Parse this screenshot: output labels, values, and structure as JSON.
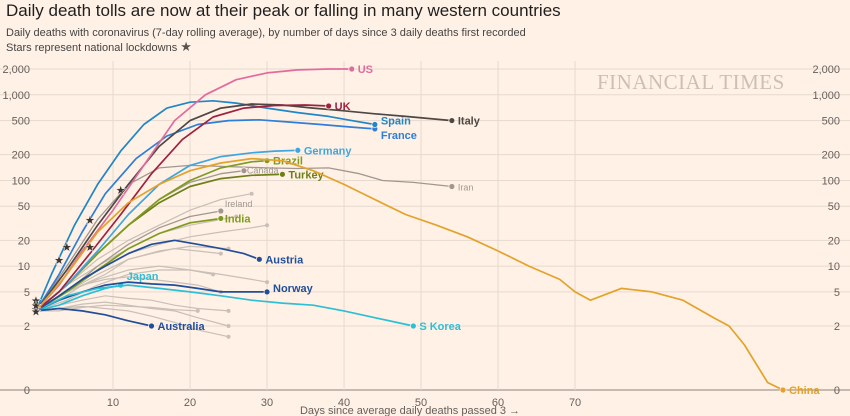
{
  "chart_data": {
    "type": "line",
    "title": "Daily death tolls are now at their peak or falling in many western countries",
    "subtitle": "Daily deaths with coronavirus (7-day rolling average), by number of days since 3 daily deaths first recorded",
    "lockdown_note": "Stars represent national lockdowns",
    "watermark": "FINANCIAL TIMES",
    "xlabel": "Days since average daily deaths passed 3 →",
    "ylabel": "",
    "y_scale": "log",
    "xlim": [
      0,
      97
    ],
    "x_ticks": [
      10,
      20,
      30,
      40,
      50,
      60,
      70
    ],
    "y_ticks": [
      0,
      2,
      5,
      10,
      20,
      50,
      100,
      200,
      500,
      1000,
      2000
    ],
    "y_tick_labels": [
      "0",
      "2",
      "5",
      "10",
      "20",
      "50",
      "100",
      "200",
      "500",
      "1,000",
      "2,000"
    ],
    "colors": {
      "US": "#e16b9e",
      "UK": "#a0213f",
      "Italy": "#4d4845",
      "Spain": "#1f86c8",
      "France": "#2f7ed8",
      "Germany": "#3fa5e0",
      "Brazil": "#7f9b1f",
      "Turkey": "#6f7f18",
      "Canada": "#a09890",
      "Iran": "#a09890",
      "Ireland": "#a09890",
      "India": "#7f9b1f",
      "Austria": "#1f4e9a",
      "Japan": "#2dbfd6",
      "Norway": "#1f4e9a",
      "Australia": "#1f4e9a",
      "S Korea": "#2dbfd6",
      "China": "#e3a22a",
      "others": "#c9bfb6"
    },
    "series": [
      {
        "name": "US",
        "x": [
          0,
          3,
          6,
          10,
          14,
          18,
          22,
          26,
          30,
          34,
          38,
          41
        ],
        "y": [
          3,
          6,
          15,
          45,
          150,
          500,
          1000,
          1500,
          1800,
          1950,
          2000,
          2000
        ]
      },
      {
        "name": "UK",
        "x": [
          0,
          3,
          7,
          11,
          15,
          19,
          23,
          27,
          31,
          35,
          38
        ],
        "y": [
          3,
          5,
          14,
          40,
          120,
          300,
          550,
          700,
          750,
          760,
          740
        ]
      },
      {
        "name": "Italy",
        "x": [
          0,
          4,
          8,
          12,
          16,
          20,
          24,
          28,
          32,
          36,
          40,
          44,
          48,
          54
        ],
        "y": [
          3,
          9,
          30,
          90,
          250,
          500,
          700,
          780,
          760,
          700,
          650,
          600,
          560,
          500
        ]
      },
      {
        "name": "Spain",
        "x": [
          0,
          2,
          5,
          8,
          11,
          14,
          17,
          20,
          23,
          26,
          30,
          34,
          38,
          41,
          44
        ],
        "y": [
          3,
          8,
          30,
          90,
          220,
          450,
          700,
          820,
          850,
          800,
          700,
          620,
          560,
          500,
          450
        ]
      },
      {
        "name": "France",
        "x": [
          0,
          3,
          6,
          9,
          13,
          17,
          21,
          25,
          29,
          33,
          37,
          41,
          44
        ],
        "y": [
          3,
          8,
          25,
          70,
          180,
          330,
          450,
          500,
          510,
          480,
          450,
          420,
          400
        ]
      },
      {
        "name": "Germany",
        "x": [
          0,
          4,
          8,
          12,
          16,
          20,
          24,
          28,
          31,
          34
        ],
        "y": [
          3,
          6,
          15,
          40,
          90,
          150,
          190,
          210,
          220,
          225
        ]
      },
      {
        "name": "Brazil",
        "x": [
          0,
          4,
          8,
          12,
          16,
          20,
          24,
          28,
          30
        ],
        "y": [
          3,
          6,
          14,
          30,
          60,
          100,
          140,
          165,
          170
        ]
      },
      {
        "name": "Turkey",
        "x": [
          0,
          4,
          8,
          12,
          16,
          20,
          24,
          28,
          32
        ],
        "y": [
          3,
          6,
          14,
          30,
          55,
          85,
          105,
          115,
          118
        ]
      },
      {
        "name": "Canada",
        "x": [
          0,
          4,
          8,
          12,
          16,
          20,
          24,
          27
        ],
        "y": [
          3,
          6,
          14,
          30,
          60,
          95,
          120,
          130
        ]
      },
      {
        "name": "Iran",
        "x": [
          0,
          4,
          8,
          12,
          16,
          20,
          25,
          30,
          34,
          38,
          42,
          45,
          49,
          54
        ],
        "y": [
          3,
          10,
          35,
          90,
          140,
          150,
          145,
          140,
          138,
          140,
          120,
          100,
          95,
          85
        ]
      },
      {
        "name": "Ireland",
        "x": [
          0,
          4,
          8,
          12,
          16,
          20,
          24
        ],
        "y": [
          3,
          5,
          10,
          18,
          28,
          38,
          44
        ]
      },
      {
        "name": "India",
        "x": [
          0,
          4,
          8,
          12,
          16,
          20,
          24
        ],
        "y": [
          3,
          5,
          9,
          16,
          24,
          32,
          36
        ]
      },
      {
        "name": "Austria",
        "x": [
          0,
          3,
          6,
          9,
          12,
          15,
          18,
          21,
          24,
          27,
          29
        ],
        "y": [
          3,
          4.5,
          7,
          10,
          14,
          18,
          20,
          18,
          16,
          14,
          12
        ]
      },
      {
        "name": "Japan",
        "x": [
          0,
          3,
          6,
          9,
          11
        ],
        "y": [
          3,
          3.5,
          4.5,
          5.5,
          6
        ]
      },
      {
        "name": "Norway",
        "x": [
          0,
          3,
          6,
          9,
          12,
          15,
          18,
          21,
          24,
          27,
          30
        ],
        "y": [
          3,
          4,
          5,
          6,
          6.5,
          6.2,
          6,
          5.5,
          5,
          5,
          5
        ]
      },
      {
        "name": "Australia",
        "x": [
          0,
          3,
          6,
          9,
          12,
          15
        ],
        "y": [
          3,
          3.2,
          3,
          2.7,
          2.3,
          2
        ]
      },
      {
        "name": "S Korea",
        "x": [
          0,
          4,
          8,
          12,
          16,
          20,
          24,
          28,
          32,
          36,
          40,
          44,
          49
        ],
        "y": [
          3,
          4.5,
          5.5,
          6,
          5.5,
          5,
          4.5,
          4,
          3.7,
          3.5,
          3,
          2.5,
          2
        ]
      },
      {
        "name": "China",
        "x": [
          0,
          4,
          8,
          12,
          16,
          20,
          24,
          28,
          32,
          36,
          40,
          44,
          48,
          52,
          56,
          60,
          64,
          68,
          70,
          72,
          76,
          80,
          84,
          88,
          90,
          92,
          95,
          97
        ],
        "y": [
          3,
          8,
          25,
          55,
          90,
          130,
          160,
          180,
          170,
          130,
          90,
          60,
          40,
          30,
          22,
          15,
          10,
          7,
          5,
          4,
          5.5,
          5,
          4,
          2.5,
          2,
          1.2,
          0.2,
          0.1
        ]
      }
    ],
    "labels": [
      "US",
      "UK",
      "Italy",
      "Spain",
      "France",
      "Germany",
      "Brazil",
      "Turkey",
      "Canada",
      "Iran",
      "Ireland",
      "India",
      "Austria",
      "Japan",
      "Norway",
      "Australia",
      "S Korea",
      "China"
    ],
    "lockdowns": [
      {
        "x": 0,
        "y": 3.2
      },
      {
        "x": 0,
        "y": 4
      },
      {
        "x": 0,
        "y": 3
      },
      {
        "x": 3,
        "y": 12
      },
      {
        "x": 4,
        "y": 17
      },
      {
        "x": 7,
        "y": 35
      },
      {
        "x": 7,
        "y": 17
      },
      {
        "x": 11,
        "y": 78
      },
      {
        "x": 0,
        "y": 3.5
      }
    ],
    "others": [
      {
        "x": [
          0,
          4,
          8,
          12,
          16,
          20,
          25
        ],
        "y": [
          3,
          5,
          8,
          12,
          15,
          17,
          16
        ]
      },
      {
        "x": [
          0,
          4,
          8,
          12,
          16,
          20,
          23
        ],
        "y": [
          3,
          4,
          6,
          8,
          9,
          9,
          8
        ]
      },
      {
        "x": [
          0,
          3,
          6,
          9,
          12,
          15,
          18,
          21,
          25
        ],
        "y": [
          3,
          3.5,
          4,
          4.5,
          4.2,
          4,
          3.5,
          3.2,
          3
        ]
      },
      {
        "x": [
          0,
          3,
          6,
          9,
          12,
          15,
          18,
          21,
          25
        ],
        "y": [
          3,
          3.2,
          3.6,
          3.8,
          3.5,
          3.2,
          3,
          2.5,
          2
        ]
      },
      {
        "x": [
          0,
          4,
          8,
          12,
          16,
          20,
          24,
          28,
          30
        ],
        "y": [
          3,
          5,
          9,
          14,
          18,
          22,
          25,
          28,
          30
        ]
      },
      {
        "x": [
          0,
          3,
          6,
          9,
          12,
          15,
          18,
          21,
          24
        ],
        "y": [
          3,
          4,
          6,
          8,
          12,
          14,
          16,
          15,
          14
        ]
      },
      {
        "x": [
          0,
          3,
          6,
          9,
          12,
          15,
          18,
          21
        ],
        "y": [
          3,
          3,
          3.3,
          3.5,
          3.4,
          3.3,
          3.1,
          3
        ]
      },
      {
        "x": [
          0,
          4,
          8,
          12,
          16,
          20,
          24,
          28
        ],
        "y": [
          3,
          6,
          12,
          20,
          30,
          45,
          60,
          70
        ]
      },
      {
        "x": [
          0,
          4,
          8,
          12,
          16,
          20,
          24,
          26
        ],
        "y": [
          3,
          6,
          10,
          16,
          24,
          30,
          35,
          38
        ]
      },
      {
        "x": [
          0,
          3,
          6,
          9,
          12,
          15,
          18,
          21,
          24
        ],
        "y": [
          3,
          4.5,
          6,
          7,
          7.5,
          7,
          6.5,
          6,
          5
        ]
      },
      {
        "x": [
          0,
          3,
          6,
          9,
          12,
          15,
          18,
          21,
          25
        ],
        "y": [
          3,
          3.2,
          3.4,
          3.2,
          3,
          2.6,
          2.2,
          1.8,
          1.5
        ]
      },
      {
        "x": [
          0,
          4,
          8,
          12,
          16,
          20,
          24,
          28,
          30
        ],
        "y": [
          3,
          5,
          7,
          9,
          10,
          9,
          8,
          7,
          6.5
        ]
      }
    ]
  }
}
